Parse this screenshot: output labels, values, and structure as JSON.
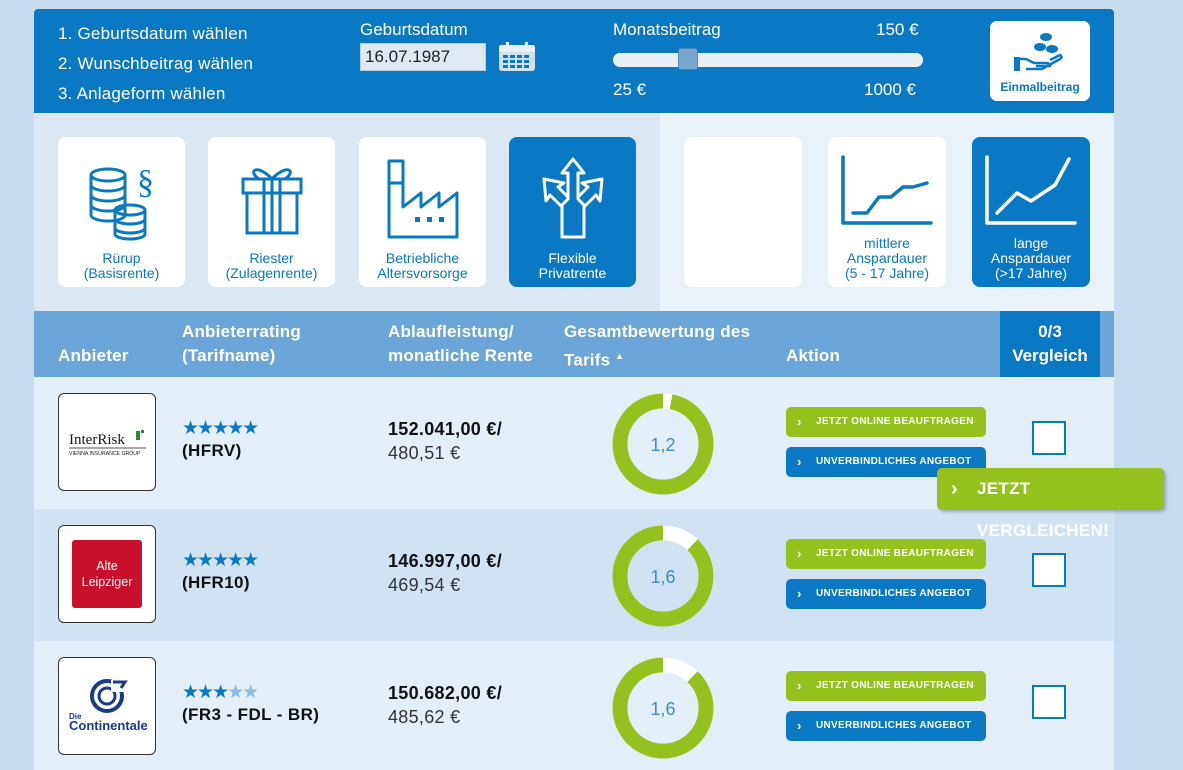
{
  "header": {
    "steps": [
      "1. Geburtsdatum wählen",
      "2. Wunschbeitrag wählen",
      "3. Anlageform wählen"
    ],
    "birthdate_label": "Geburtsdatum",
    "birthdate_value": "16.07.1987",
    "monthly_label": "Monatsbeitrag",
    "monthly_value": "150 €",
    "monthly_fraction": 0.13,
    "slider_min": "25 €",
    "slider_max": "1000 €",
    "lump_sum_label": "Einmalbeitrag",
    "icons": {
      "calendar": "calendar-icon",
      "lump_sum": "hand-coins-icon"
    }
  },
  "product_tiles": [
    {
      "line1": "Rürup",
      "line2": "(Basisrente)",
      "icon": "coins-paragraph-icon",
      "active": false
    },
    {
      "line1": "Riester",
      "line2": "(Zulagenrente)",
      "icon": "gift-icon",
      "active": false
    },
    {
      "line1": "Betriebliche",
      "line2": "Altersvorsorge",
      "icon": "factory-icon",
      "active": false
    },
    {
      "line1": "Flexible",
      "line2": "Privatrente",
      "icon": "arrows-split-icon",
      "active": true
    }
  ],
  "duration_tiles": [
    {
      "line1": "",
      "line2": "",
      "line3": "",
      "icon": "",
      "active": false
    },
    {
      "line1": "mittlere",
      "line2": "Anspardauer",
      "line3": "(5 - 17 Jahre)",
      "icon": "chart-moderate-icon",
      "active": false
    },
    {
      "line1": "lange",
      "line2": "Anspardauer",
      "line3": "(>17 Jahre)",
      "icon": "chart-long-icon",
      "active": true
    }
  ],
  "table": {
    "col_provider": "Anbieter",
    "col_rating_1": "Anbieterrating",
    "col_rating_2": "(Tarifname)",
    "col_payout_1": "Ablaufleistung/",
    "col_payout_2": "monatliche Rente",
    "col_score_1": "Gesamtbewertung des",
    "col_score_2": "Tarifs",
    "sort_marker": "▲",
    "col_action": "Aktion",
    "compare_count": "0/3",
    "compare_label": "Vergleich"
  },
  "rows": [
    {
      "provider": "InterRisk",
      "provider_sub": "VIENNA INSURANCE GROUP",
      "stars": 5,
      "stars_max": 5,
      "tarif": "(HFRV)",
      "payout": "152.041,00 €/",
      "rente": "480,51 €",
      "score": "1,2",
      "score_fraction": 0.97,
      "btn_online": "JETZT ONLINE BEAUFTRAGEN",
      "btn_offer": "UNVERBINDLICHES ANGEBOT",
      "checked": false
    },
    {
      "provider": "Alte Leipziger",
      "provider_line1": "Alte",
      "provider_line2": "Leipziger",
      "stars": 5,
      "stars_max": 5,
      "tarif": "(HFR10)",
      "payout": "146.997,00 €/",
      "rente": "469,54 €",
      "score": "1,6",
      "score_fraction": 0.88,
      "btn_online": "JETZT ONLINE BEAUFTRAGEN",
      "btn_offer": "UNVERBINDLICHES ANGEBOT",
      "checked": false
    },
    {
      "provider": "Die Continentale",
      "provider_line1": "Die",
      "provider_line2": "Continentale",
      "stars": 3,
      "stars_max": 5,
      "tarif": "(FR3 - FDL - BR)",
      "payout": "150.682,00 €/",
      "rente": "485,62 €",
      "score": "1,6",
      "score_fraction": 0.88,
      "btn_online": "JETZT ONLINE BEAUFTRAGEN",
      "btn_offer": "UNVERBINDLICHES ANGEBOT",
      "checked": false
    }
  ],
  "compare_button": "JETZT VERGLEICHEN!",
  "colors": {
    "primary": "#0a78c2",
    "green": "#95c11f",
    "header_table": "#6aa6d9",
    "donut_empty": "#ffffff"
  }
}
